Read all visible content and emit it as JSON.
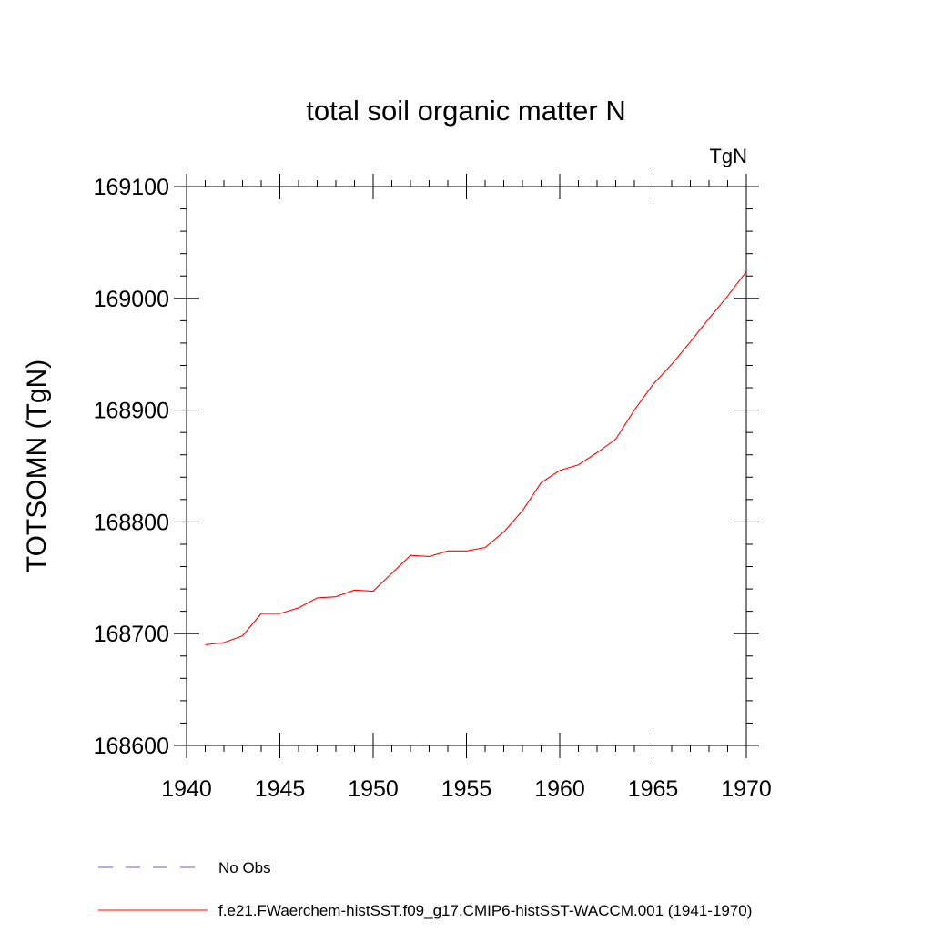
{
  "chart_data": {
    "type": "line",
    "title": "total soil organic matter N",
    "units_label": "TgN",
    "ylabel": "TOTSOMN  (TgN)",
    "xlabel": "",
    "xlim": [
      1940,
      1970
    ],
    "ylim": [
      168600,
      169100
    ],
    "x_ticks": [
      1940,
      1945,
      1950,
      1955,
      1960,
      1965,
      1970
    ],
    "y_ticks": [
      168600,
      168700,
      168800,
      168900,
      169000,
      169100
    ],
    "grid": false,
    "legend_position": "bottom",
    "series": [
      {
        "name": "f.e21.FWaerchem-histSST.f09_g17.CMIP6-histSST-WACCM.001 (1941-1970)",
        "color": "#ff0000",
        "style": "solid",
        "x": [
          1941,
          1942,
          1943,
          1944,
          1945,
          1946,
          1947,
          1948,
          1949,
          1950,
          1951,
          1952,
          1953,
          1954,
          1955,
          1956,
          1957,
          1958,
          1959,
          1960,
          1961,
          1962,
          1963,
          1964,
          1965,
          1966,
          1967,
          1968,
          1969,
          1970
        ],
        "y": [
          168690,
          168692,
          168698,
          168718,
          168718,
          168723,
          168732,
          168733,
          168739,
          168738,
          168754,
          168770,
          168769,
          168774,
          168774,
          168777,
          168791,
          168810,
          168835,
          168846,
          168851,
          168862,
          168874,
          168900,
          168923,
          168941,
          168961,
          168982,
          169002,
          169024
        ]
      }
    ],
    "legend": [
      {
        "label": "No Obs",
        "color": "#6a5acd",
        "style": "dashed"
      },
      {
        "label": "f.e21.FWaerchem-histSST.f09_g17.CMIP6-histSST-WACCM.001 (1941-1970)",
        "color": "#ff0000",
        "style": "solid"
      }
    ]
  }
}
